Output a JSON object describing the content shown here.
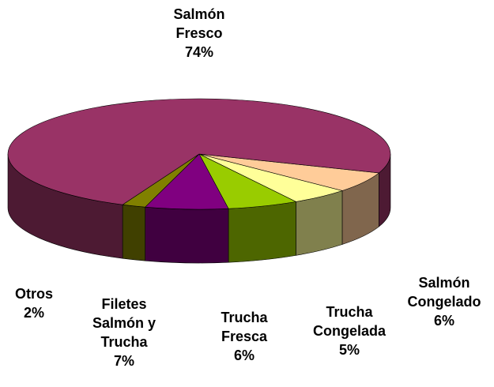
{
  "chart_data": {
    "type": "pie3d",
    "categories": [
      "Salmón Congelado",
      "Trucha Congelada",
      "Trucha Fresca",
      "Filetes Salmón y Trucha",
      "Otros",
      "Salmón Fresco"
    ],
    "values": [
      6,
      5,
      6,
      7,
      2,
      74
    ],
    "value_labels": [
      "6%",
      "5%",
      "6%",
      "7%",
      "2%",
      "74%"
    ],
    "colors": [
      "#ffcc99",
      "#ffff99",
      "#99cc00",
      "#800080",
      "#808000",
      "#993366"
    ]
  }
}
